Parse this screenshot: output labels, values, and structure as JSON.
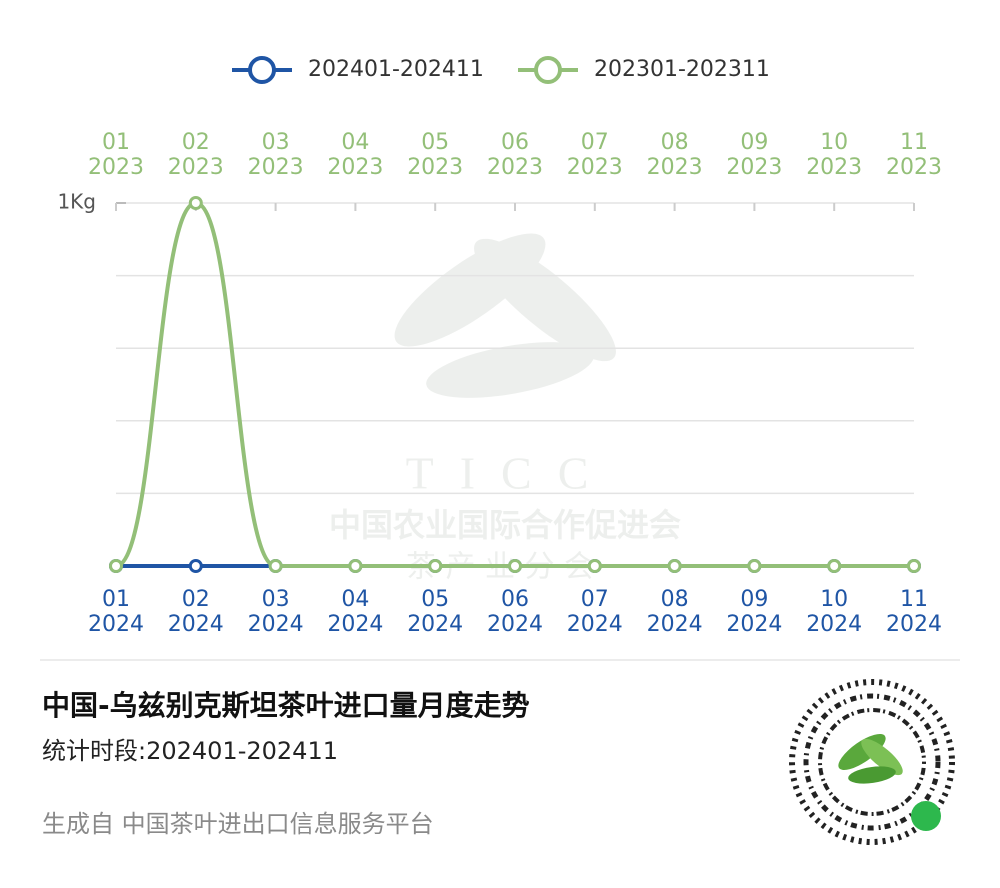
{
  "chart_data": {
    "type": "line",
    "title": "中国-乌兹别克斯坦茶叶进口量月度走势",
    "subtitle": "统计时段:202401-202411",
    "footer": "生成自 中国茶叶进出口信息服务平台",
    "watermark": {
      "logo": "TICC",
      "org": "中国农业国际合作促进会",
      "branch": "茶 产 业 分 会"
    },
    "x_top": [
      [
        "01",
        "2023"
      ],
      [
        "02",
        "2023"
      ],
      [
        "03",
        "2023"
      ],
      [
        "04",
        "2023"
      ],
      [
        "05",
        "2023"
      ],
      [
        "06",
        "2023"
      ],
      [
        "07",
        "2023"
      ],
      [
        "08",
        "2023"
      ],
      [
        "09",
        "2023"
      ],
      [
        "10",
        "2023"
      ],
      [
        "11",
        "2023"
      ]
    ],
    "x_bottom": [
      [
        "01",
        "2024"
      ],
      [
        "02",
        "2024"
      ],
      [
        "03",
        "2024"
      ],
      [
        "04",
        "2024"
      ],
      [
        "05",
        "2024"
      ],
      [
        "06",
        "2024"
      ],
      [
        "07",
        "2024"
      ],
      [
        "08",
        "2024"
      ],
      [
        "09",
        "2024"
      ],
      [
        "10",
        "2024"
      ],
      [
        "11",
        "2024"
      ]
    ],
    "series": [
      {
        "name": "202401-202411",
        "color": "#1f55a5",
        "values": [
          0,
          0,
          0,
          0,
          0,
          0,
          0,
          0,
          0,
          0,
          0
        ]
      },
      {
        "name": "202301-202311",
        "color": "#93bf78",
        "values": [
          0,
          1,
          0,
          0,
          0,
          0,
          0,
          0,
          0,
          0,
          0
        ]
      }
    ],
    "ylim": [
      0,
      1
    ],
    "yticks": [
      {
        "value": 1,
        "label": "1Kg"
      }
    ],
    "grid_lines": [
      0,
      0.2,
      0.4,
      0.6,
      0.8,
      1
    ],
    "grid": true
  }
}
